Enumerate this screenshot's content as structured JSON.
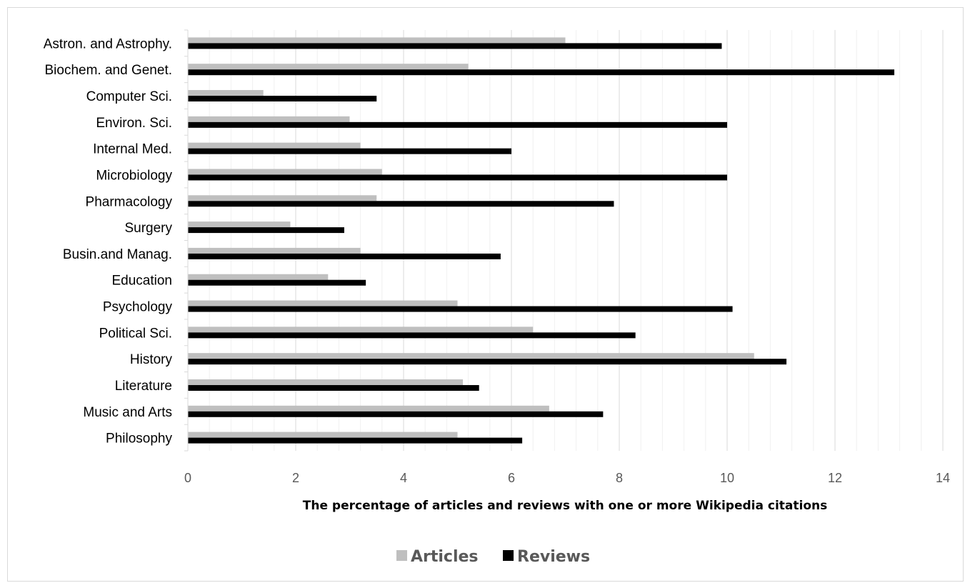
{
  "chart_data": {
    "type": "bar",
    "orientation": "horizontal",
    "title": "",
    "xlabel": "The percentage of articles and reviews with one or more Wikipedia citations",
    "ylabel": "",
    "xlim": [
      0,
      14
    ],
    "xticks": [
      "0",
      "2",
      "4",
      "6",
      "8",
      "10",
      "12",
      "14"
    ],
    "grid": "vertical, major and minor",
    "legend_position": "bottom",
    "categories": [
      "Astron. and Astrophy.",
      "Biochem. and Genet.",
      "Computer Sci.",
      "Environ. Sci.",
      "Internal Med.",
      "Microbiology",
      "Pharmacology",
      "Surgery",
      "Busin.and Manag.",
      "Education",
      "Psychology",
      "Political Sci.",
      "History",
      "Literature",
      "Music and Arts",
      "Philosophy"
    ],
    "series": [
      {
        "name": "Articles",
        "color": "#bfbfbf",
        "values": [
          7.0,
          5.2,
          1.4,
          3.0,
          3.2,
          3.6,
          3.5,
          1.9,
          3.2,
          2.6,
          5.0,
          6.4,
          10.5,
          5.1,
          6.7,
          5.0
        ]
      },
      {
        "name": "Reviews",
        "color": "#000000",
        "values": [
          9.9,
          13.1,
          3.5,
          10.0,
          6.0,
          10.0,
          7.9,
          2.9,
          5.8,
          3.3,
          10.1,
          8.3,
          11.1,
          5.4,
          7.7,
          6.2
        ]
      }
    ]
  }
}
